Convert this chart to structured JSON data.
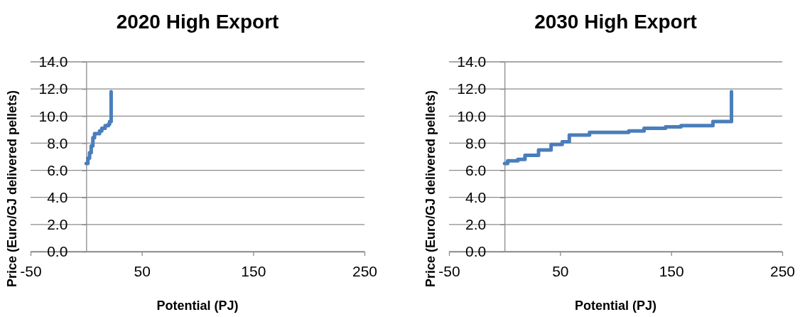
{
  "chart_data": [
    {
      "type": "step",
      "title": "2020 High Export",
      "xlabel": "Potential (PJ)",
      "ylabel": "Price (Euro/GJ delivered pellets)",
      "xlim": [
        -50,
        250
      ],
      "xticks": [
        -50,
        50,
        150,
        250
      ],
      "ylim": [
        0,
        14
      ],
      "yticks": [
        {
          "value": 0,
          "label": "0.0"
        },
        {
          "value": 2,
          "label": "2.0"
        },
        {
          "value": 4,
          "label": "4.0"
        },
        {
          "value": 6,
          "label": "6.0"
        },
        {
          "value": 8,
          "label": "8.0"
        },
        {
          "value": 10,
          "label": "10.0"
        },
        {
          "value": 12,
          "label": "12.0"
        },
        {
          "value": 14,
          "label": "14.0"
        }
      ],
      "grid": "y",
      "series": [
        {
          "color": "#4a7ebb",
          "x": [
            0,
            1.5,
            3,
            4.5,
            6,
            7.5,
            12,
            14,
            17,
            20,
            21,
            22.4
          ],
          "values": [
            6.5,
            6.9,
            7.3,
            7.8,
            8.4,
            8.7,
            8.9,
            9.1,
            9.3,
            9.4,
            9.6,
            11.8
          ]
        }
      ]
    },
    {
      "type": "step",
      "title": "2030 High Export",
      "xlabel": "Potential (PJ)",
      "ylabel": "Price (Euro/GJ delivered pellets)",
      "xlim": [
        -50,
        250
      ],
      "xticks": [
        -50,
        50,
        150,
        250
      ],
      "ylim": [
        0,
        14
      ],
      "yticks": [
        {
          "value": 0,
          "label": "0.0"
        },
        {
          "value": 2,
          "label": "2.0"
        },
        {
          "value": 4,
          "label": "4.0"
        },
        {
          "value": 6,
          "label": "6.0"
        },
        {
          "value": 8,
          "label": "8.0"
        },
        {
          "value": 10,
          "label": "10.0"
        },
        {
          "value": 12,
          "label": "12.0"
        },
        {
          "value": 14,
          "label": "14.0"
        }
      ],
      "grid": "y",
      "series": [
        {
          "color": "#4a7ebb",
          "x": [
            0,
            2.8,
            12,
            18.4,
            30.6,
            41.9,
            51.9,
            58.3,
            76.5,
            111.8,
            125.6,
            144.9,
            158.8,
            187.6,
            204.3
          ],
          "values": [
            6.5,
            6.7,
            6.8,
            7.1,
            7.5,
            7.9,
            8.1,
            8.6,
            8.8,
            8.9,
            9.1,
            9.2,
            9.3,
            9.6,
            11.8
          ]
        }
      ]
    }
  ]
}
